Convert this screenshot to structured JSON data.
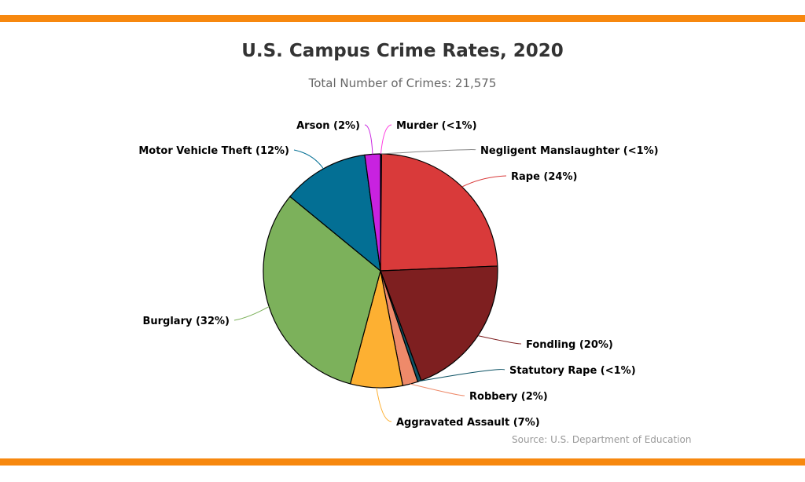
{
  "header": {
    "title": "U.S. Campus Crime Rates, 2020",
    "subtitle": "Total Number of Crimes: 21,575"
  },
  "footer": {
    "source": "Source: U.S. Department of Education"
  },
  "colors": {
    "accent_bar": "#f7880f"
  },
  "chart_data": {
    "type": "pie",
    "title": "U.S. Campus Crime Rates, 2020",
    "subtitle": "Total Number of Crimes: 21,575",
    "legend": "none",
    "start_angle_deg": 0,
    "direction": "clockwise",
    "slices": [
      {
        "name": "Murder",
        "label": "Murder (<1%)",
        "value": 0.1,
        "color": "#ff3be0"
      },
      {
        "name": "Negligent Manslaughter",
        "label": "Negligent Manslaughter (<1%)",
        "value": 0.05,
        "color": "#888888"
      },
      {
        "name": "Rape",
        "label": "Rape (24%)",
        "value": 24.2,
        "color": "#d93a3a"
      },
      {
        "name": "Fondling",
        "label": "Fondling (20%)",
        "value": 20.0,
        "color": "#7e1f20"
      },
      {
        "name": "Statutory Rape",
        "label": "Statutory Rape (<1%)",
        "value": 0.5,
        "color": "#0f5466"
      },
      {
        "name": "Robbery",
        "label": "Robbery (2%)",
        "value": 2.1,
        "color": "#ee8a6a"
      },
      {
        "name": "Aggravated Assault",
        "label": "Aggravated Assault (7%)",
        "value": 7.2,
        "color": "#fdb032"
      },
      {
        "name": "Burglary",
        "label": "Burglary (32%)",
        "value": 31.8,
        "color": "#7cb15b"
      },
      {
        "name": "Motor Vehicle Theft",
        "label": "Motor Vehicle Theft (12%)",
        "value": 11.9,
        "color": "#036f94"
      },
      {
        "name": "Arson",
        "label": "Arson (2%)",
        "value": 2.15,
        "color": "#c822e0"
      }
    ]
  }
}
